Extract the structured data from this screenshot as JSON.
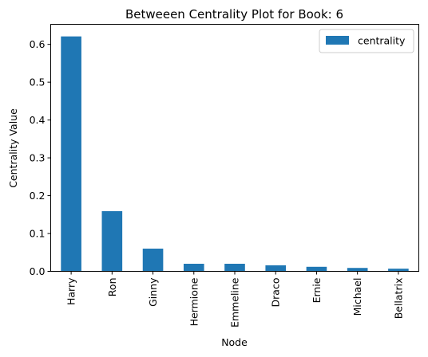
{
  "chart_data": {
    "type": "bar",
    "title": "Betweeen Centrality Plot for Book: 6",
    "xlabel": "Node",
    "ylabel": "Centrality Value",
    "categories": [
      "Harry",
      "Ron",
      "Ginny",
      "Hermione",
      "Emmeline",
      "Draco",
      "Ernie",
      "Michael",
      "Bellatrix"
    ],
    "series": [
      {
        "name": "centrality",
        "values": [
          0.621,
          0.159,
          0.06,
          0.02,
          0.02,
          0.016,
          0.012,
          0.009,
          0.007
        ],
        "color": "#1f77b4"
      }
    ],
    "ylim": [
      0,
      0.653
    ],
    "yticks": [
      0.0,
      0.1,
      0.2,
      0.3,
      0.4,
      0.5,
      0.6
    ],
    "ytick_labels": [
      "0.0",
      "0.1",
      "0.2",
      "0.3",
      "0.4",
      "0.5",
      "0.6"
    ],
    "grid": false,
    "legend": {
      "position": "top-right",
      "entries": [
        "centrality"
      ]
    }
  }
}
